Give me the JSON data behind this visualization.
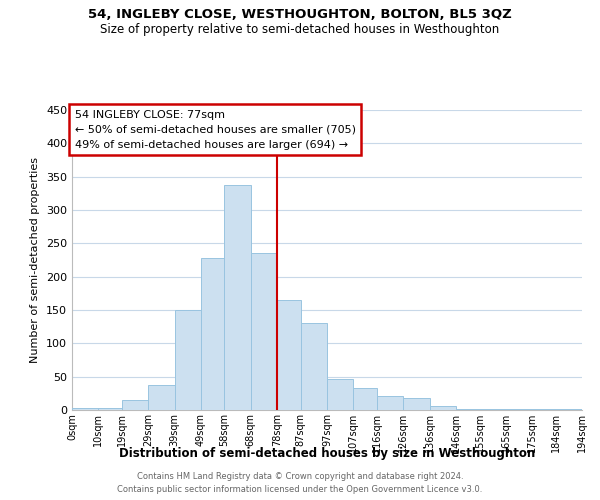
{
  "title": "54, INGLEBY CLOSE, WESTHOUGHTON, BOLTON, BL5 3QZ",
  "subtitle": "Size of property relative to semi-detached houses in Westhoughton",
  "xlabel": "Distribution of semi-detached houses by size in Westhoughton",
  "ylabel": "Number of semi-detached properties",
  "footnote1": "Contains HM Land Registry data © Crown copyright and database right 2024.",
  "footnote2": "Contains public sector information licensed under the Open Government Licence v3.0.",
  "bar_color": "#cce0f0",
  "bar_edge_color": "#99c4e0",
  "property_line_color": "#cc0000",
  "annotation_title": "54 INGLEBY CLOSE: 77sqm",
  "annotation_line1": "← 50% of semi-detached houses are smaller (705)",
  "annotation_line2": "49% of semi-detached houses are larger (694) →",
  "annotation_box_color": "#ffffff",
  "annotation_box_edge": "#cc0000",
  "bin_labels": [
    "0sqm",
    "10sqm",
    "19sqm",
    "29sqm",
    "39sqm",
    "49sqm",
    "58sqm",
    "68sqm",
    "78sqm",
    "87sqm",
    "97sqm",
    "107sqm",
    "116sqm",
    "126sqm",
    "136sqm",
    "146sqm",
    "155sqm",
    "165sqm",
    "175sqm",
    "184sqm",
    "194sqm"
  ],
  "bin_edges": [
    0,
    10,
    19,
    29,
    39,
    49,
    58,
    68,
    78,
    87,
    97,
    107,
    116,
    126,
    136,
    146,
    155,
    165,
    175,
    184,
    194
  ],
  "bar_heights": [
    3,
    3,
    15,
    37,
    150,
    228,
    337,
    235,
    165,
    130,
    47,
    33,
    21,
    18,
    6,
    2,
    2,
    1,
    1,
    1
  ],
  "ylim": [
    0,
    450
  ],
  "yticks": [
    0,
    50,
    100,
    150,
    200,
    250,
    300,
    350,
    400,
    450
  ],
  "background_color": "#ffffff",
  "grid_color": "#c8d8e8"
}
